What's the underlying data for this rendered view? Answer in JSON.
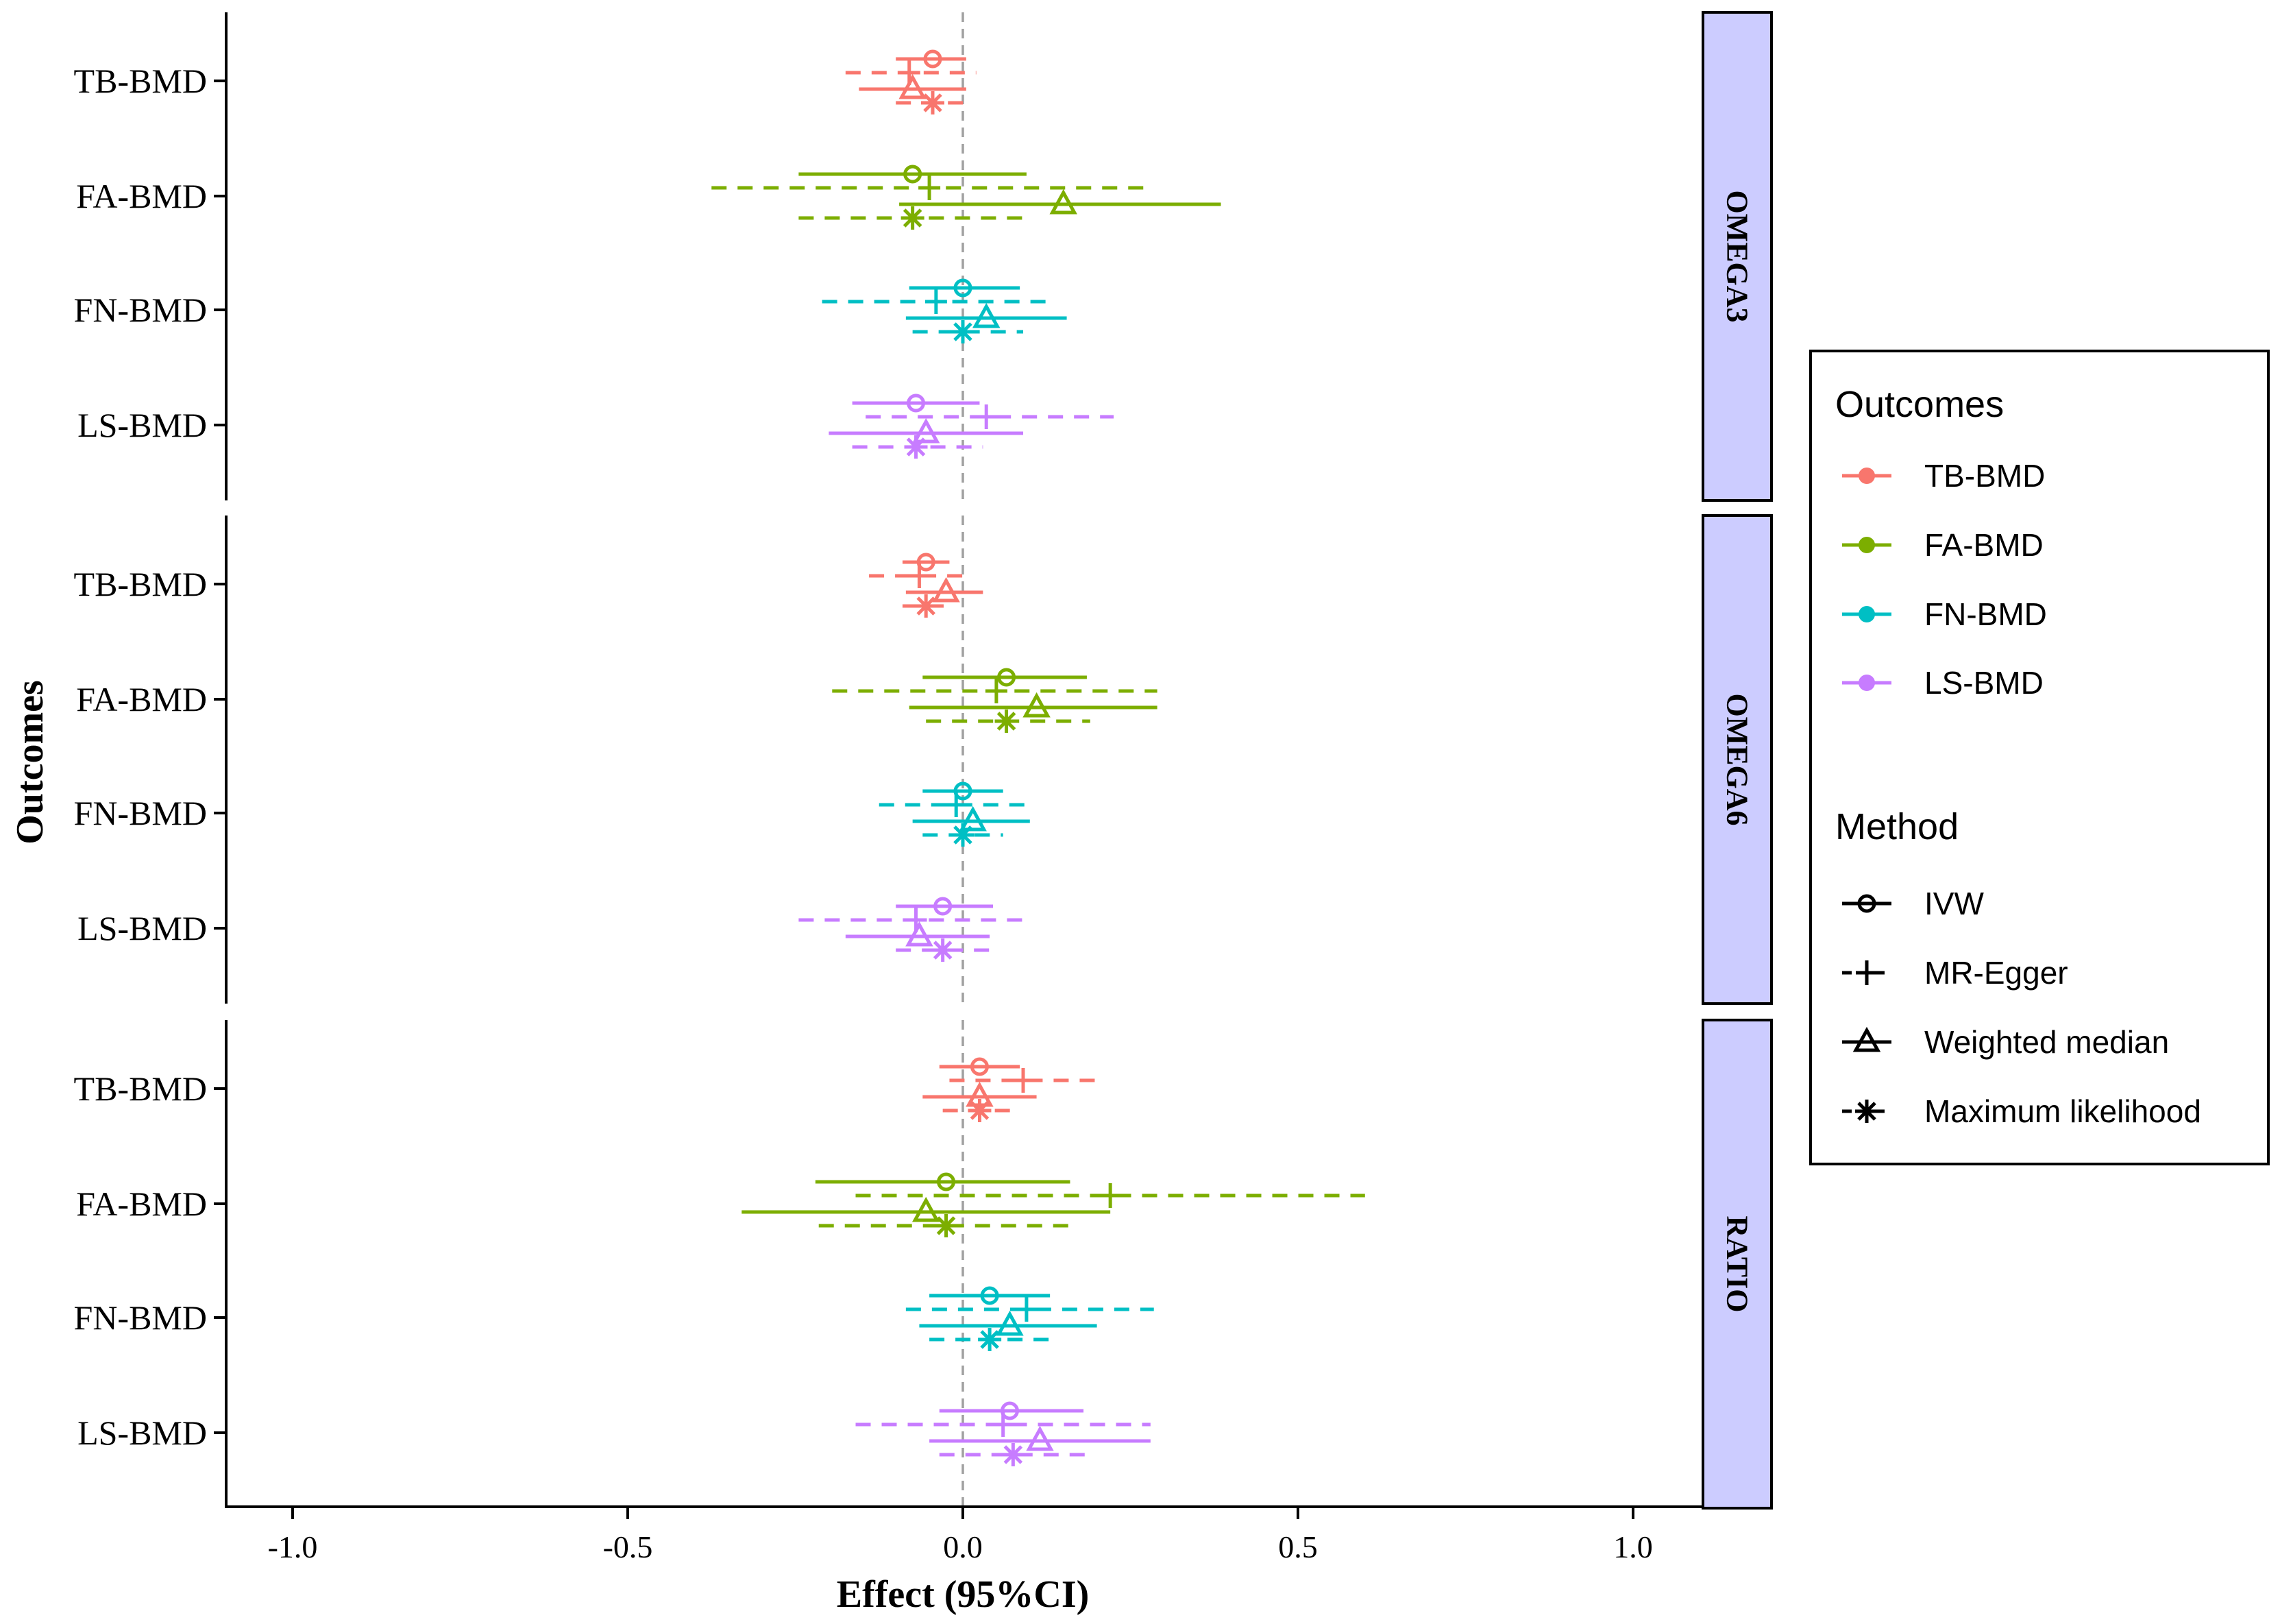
{
  "chart_data": {
    "type": "forest",
    "xlabel": "Effect (95%CI)",
    "ylabel": "Outcomes",
    "xlim": [
      -1.1,
      1.2
    ],
    "xticks": [
      -1.0,
      -0.5,
      0.0,
      0.5,
      1.0
    ],
    "xtick_labels": [
      "-1.0",
      "-0.5",
      "0.0",
      "0.5",
      "1.0"
    ],
    "reference_line": 0,
    "outcomes": [
      "TB-BMD",
      "FA-BMD",
      "FN-BMD",
      "LS-BMD"
    ],
    "methods": [
      "IVW",
      "MR-Egger",
      "Weighted median",
      "Maximum likelihood"
    ],
    "colors": {
      "TB-BMD": "#F8766D",
      "FA-BMD": "#7CAE00",
      "FN-BMD": "#00BFC4",
      "LS-BMD": "#C77CFF"
    },
    "legend": {
      "outcomes_title": "Outcomes",
      "method_title": "Method",
      "outcomes": [
        "TB-BMD",
        "FA-BMD",
        "FN-BMD",
        "LS-BMD"
      ],
      "methods": [
        "IVW",
        "MR-Egger",
        "Weighted median",
        "Maximum likelihood"
      ]
    },
    "panels": [
      {
        "label": "OMEGA3",
        "rows": [
          {
            "outcome": "TB-BMD",
            "estimates": [
              {
                "method": "IVW",
                "est": -0.045,
                "lo": -0.1,
                "hi": 0.005
              },
              {
                "method": "MR-Egger",
                "est": -0.08,
                "lo": -0.175,
                "hi": 0.02
              },
              {
                "method": "Weighted median",
                "est": -0.075,
                "lo": -0.155,
                "hi": 0.005
              },
              {
                "method": "Maximum likelihood",
                "est": -0.045,
                "lo": -0.1,
                "hi": 0.005
              }
            ]
          },
          {
            "outcome": "FA-BMD",
            "estimates": [
              {
                "method": "IVW",
                "est": -0.075,
                "lo": -0.245,
                "hi": 0.095
              },
              {
                "method": "MR-Egger",
                "est": -0.05,
                "lo": -0.375,
                "hi": 0.275
              },
              {
                "method": "Weighted median",
                "est": 0.15,
                "lo": -0.095,
                "hi": 0.385
              },
              {
                "method": "Maximum likelihood",
                "est": -0.075,
                "lo": -0.245,
                "hi": 0.095
              }
            ]
          },
          {
            "outcome": "FN-BMD",
            "estimates": [
              {
                "method": "IVW",
                "est": 0.0,
                "lo": -0.08,
                "hi": 0.085
              },
              {
                "method": "MR-Egger",
                "est": -0.04,
                "lo": -0.21,
                "hi": 0.13
              },
              {
                "method": "Weighted median",
                "est": 0.035,
                "lo": -0.085,
                "hi": 0.155
              },
              {
                "method": "Maximum likelihood",
                "est": 0.0,
                "lo": -0.075,
                "hi": 0.09
              }
            ]
          },
          {
            "outcome": "LS-BMD",
            "estimates": [
              {
                "method": "IVW",
                "est": -0.07,
                "lo": -0.165,
                "hi": 0.025
              },
              {
                "method": "MR-Egger",
                "est": 0.035,
                "lo": -0.145,
                "hi": 0.225
              },
              {
                "method": "Weighted median",
                "est": -0.055,
                "lo": -0.2,
                "hi": 0.09
              },
              {
                "method": "Maximum likelihood",
                "est": -0.07,
                "lo": -0.165,
                "hi": 0.03
              }
            ]
          }
        ]
      },
      {
        "label": "OMEGA6",
        "rows": [
          {
            "outcome": "TB-BMD",
            "estimates": [
              {
                "method": "IVW",
                "est": -0.055,
                "lo": -0.09,
                "hi": -0.02
              },
              {
                "method": "MR-Egger",
                "est": -0.065,
                "lo": -0.14,
                "hi": 0.0
              },
              {
                "method": "Weighted median",
                "est": -0.025,
                "lo": -0.085,
                "hi": 0.03
              },
              {
                "method": "Maximum likelihood",
                "est": -0.055,
                "lo": -0.09,
                "hi": -0.015
              }
            ]
          },
          {
            "outcome": "FA-BMD",
            "estimates": [
              {
                "method": "IVW",
                "est": 0.065,
                "lo": -0.06,
                "hi": 0.185
              },
              {
                "method": "MR-Egger",
                "est": 0.05,
                "lo": -0.195,
                "hi": 0.29
              },
              {
                "method": "Weighted median",
                "est": 0.11,
                "lo": -0.08,
                "hi": 0.29
              },
              {
                "method": "Maximum likelihood",
                "est": 0.065,
                "lo": -0.055,
                "hi": 0.19
              }
            ]
          },
          {
            "outcome": "FN-BMD",
            "estimates": [
              {
                "method": "IVW",
                "est": 0.0,
                "lo": -0.06,
                "hi": 0.06
              },
              {
                "method": "MR-Egger",
                "est": -0.01,
                "lo": -0.125,
                "hi": 0.105
              },
              {
                "method": "Weighted median",
                "est": 0.015,
                "lo": -0.075,
                "hi": 0.1
              },
              {
                "method": "Maximum likelihood",
                "est": 0.0,
                "lo": -0.06,
                "hi": 0.06
              }
            ]
          },
          {
            "outcome": "LS-BMD",
            "estimates": [
              {
                "method": "IVW",
                "est": -0.03,
                "lo": -0.1,
                "hi": 0.045
              },
              {
                "method": "MR-Egger",
                "est": -0.07,
                "lo": -0.245,
                "hi": 0.09
              },
              {
                "method": "Weighted median",
                "est": -0.065,
                "lo": -0.175,
                "hi": 0.04
              },
              {
                "method": "Maximum likelihood",
                "est": -0.03,
                "lo": -0.1,
                "hi": 0.045
              }
            ]
          }
        ]
      },
      {
        "label": "RATIO",
        "rows": [
          {
            "outcome": "TB-BMD",
            "estimates": [
              {
                "method": "IVW",
                "est": 0.025,
                "lo": -0.035,
                "hi": 0.085
              },
              {
                "method": "MR-Egger",
                "est": 0.09,
                "lo": -0.02,
                "hi": 0.21
              },
              {
                "method": "Weighted median",
                "est": 0.025,
                "lo": -0.06,
                "hi": 0.11
              },
              {
                "method": "Maximum likelihood",
                "est": 0.025,
                "lo": -0.03,
                "hi": 0.085
              }
            ]
          },
          {
            "outcome": "FA-BMD",
            "estimates": [
              {
                "method": "IVW",
                "est": -0.025,
                "lo": -0.22,
                "hi": 0.16
              },
              {
                "method": "MR-Egger",
                "est": 0.22,
                "lo": -0.16,
                "hi": 0.6
              },
              {
                "method": "Weighted median",
                "est": -0.055,
                "lo": -0.33,
                "hi": 0.22
              },
              {
                "method": "Maximum likelihood",
                "est": -0.025,
                "lo": -0.215,
                "hi": 0.165
              }
            ]
          },
          {
            "outcome": "FN-BMD",
            "estimates": [
              {
                "method": "IVW",
                "est": 0.04,
                "lo": -0.05,
                "hi": 0.13
              },
              {
                "method": "MR-Egger",
                "est": 0.095,
                "lo": -0.085,
                "hi": 0.285
              },
              {
                "method": "Weighted median",
                "est": 0.07,
                "lo": -0.065,
                "hi": 0.2
              },
              {
                "method": "Maximum likelihood",
                "est": 0.04,
                "lo": -0.05,
                "hi": 0.13
              }
            ]
          },
          {
            "outcome": "LS-BMD",
            "estimates": [
              {
                "method": "IVW",
                "est": 0.07,
                "lo": -0.035,
                "hi": 0.18
              },
              {
                "method": "MR-Egger",
                "est": 0.06,
                "lo": -0.16,
                "hi": 0.28
              },
              {
                "method": "Weighted median",
                "est": 0.115,
                "lo": -0.05,
                "hi": 0.28
              },
              {
                "method": "Maximum likelihood",
                "est": 0.075,
                "lo": -0.035,
                "hi": 0.185
              }
            ]
          }
        ]
      }
    ]
  }
}
